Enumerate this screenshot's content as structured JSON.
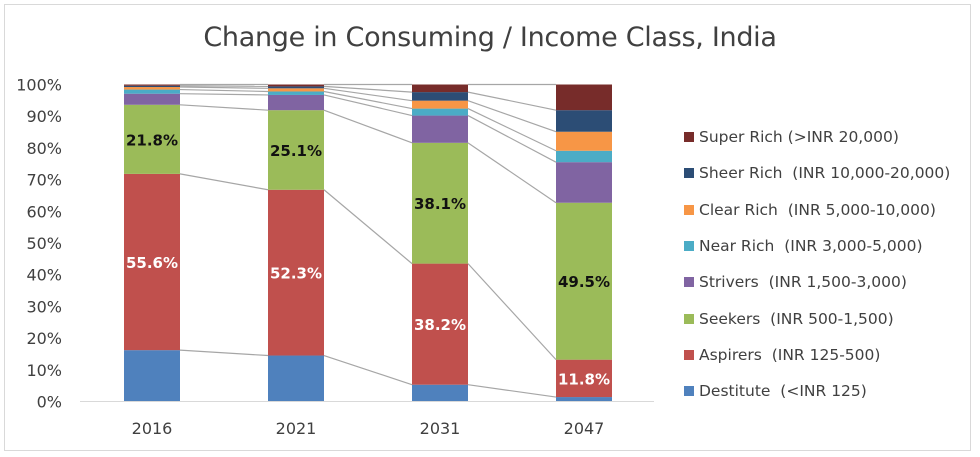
{
  "chart_data": {
    "type": "bar",
    "stacked": "percent",
    "title": "Change in Consuming / Income Class, India",
    "xlabel": "",
    "ylabel": "",
    "ylim": [
      0,
      100
    ],
    "y_ticks": [
      "0%",
      "10%",
      "20%",
      "30%",
      "40%",
      "50%",
      "60%",
      "70%",
      "80%",
      "90%",
      "100%"
    ],
    "categories": [
      "2016",
      "2021",
      "2031",
      "2047"
    ],
    "legend_position": "right",
    "grid": false,
    "series_connector_lines": true,
    "series": [
      {
        "name": "Destitute  (<INR 125)",
        "color": "#4F81BD",
        "values": [
          16.2,
          14.5,
          5.3,
          1.4
        ],
        "labels": [
          "",
          "",
          "",
          ""
        ],
        "label_color": "#ffffff"
      },
      {
        "name": "Aspirers  (INR 125-500)",
        "color": "#C0504D",
        "values": [
          55.6,
          52.3,
          38.2,
          11.8
        ],
        "labels": [
          "55.6%",
          "52.3%",
          "38.2%",
          "11.8%"
        ],
        "label_color": "#ffffff"
      },
      {
        "name": "Seekers  (INR 500-1,500)",
        "color": "#9BBB59",
        "values": [
          21.8,
          25.1,
          38.1,
          49.5
        ],
        "labels": [
          "21.8%",
          "25.1%",
          "38.1%",
          "49.5%"
        ],
        "label_color": "#111111"
      },
      {
        "name": "Strivers  (INR 1,500-3,000)",
        "color": "#8064A2",
        "values": [
          3.5,
          4.8,
          8.6,
          12.8
        ],
        "labels": [
          "",
          "",
          "",
          ""
        ],
        "label_color": "#ffffff"
      },
      {
        "name": "Near Rich  (INR 3,000-5,000)",
        "color": "#4BACC6",
        "values": [
          1.3,
          1.1,
          2.2,
          3.6
        ],
        "labels": [
          "",
          "",
          "",
          ""
        ],
        "label_color": "#ffffff"
      },
      {
        "name": "Clear Rich  (INR 5,000-10,000)",
        "color": "#F79646",
        "values": [
          0.8,
          1.0,
          2.5,
          6.0
        ],
        "labels": [
          "",
          "",
          "",
          ""
        ],
        "label_color": "#ffffff"
      },
      {
        "name": "Sheer Rich  (INR 10,000-20,000)",
        "color": "#2C4D75",
        "values": [
          0.4,
          0.6,
          2.7,
          6.8
        ],
        "labels": [
          "",
          "",
          "",
          ""
        ],
        "label_color": "#ffffff"
      },
      {
        "name": "Super Rich (>INR 20,000)",
        "color": "#772C2A",
        "values": [
          0.4,
          0.6,
          2.4,
          8.1
        ],
        "labels": [
          "",
          "",
          "",
          ""
        ],
        "label_color": "#ffffff"
      }
    ]
  }
}
